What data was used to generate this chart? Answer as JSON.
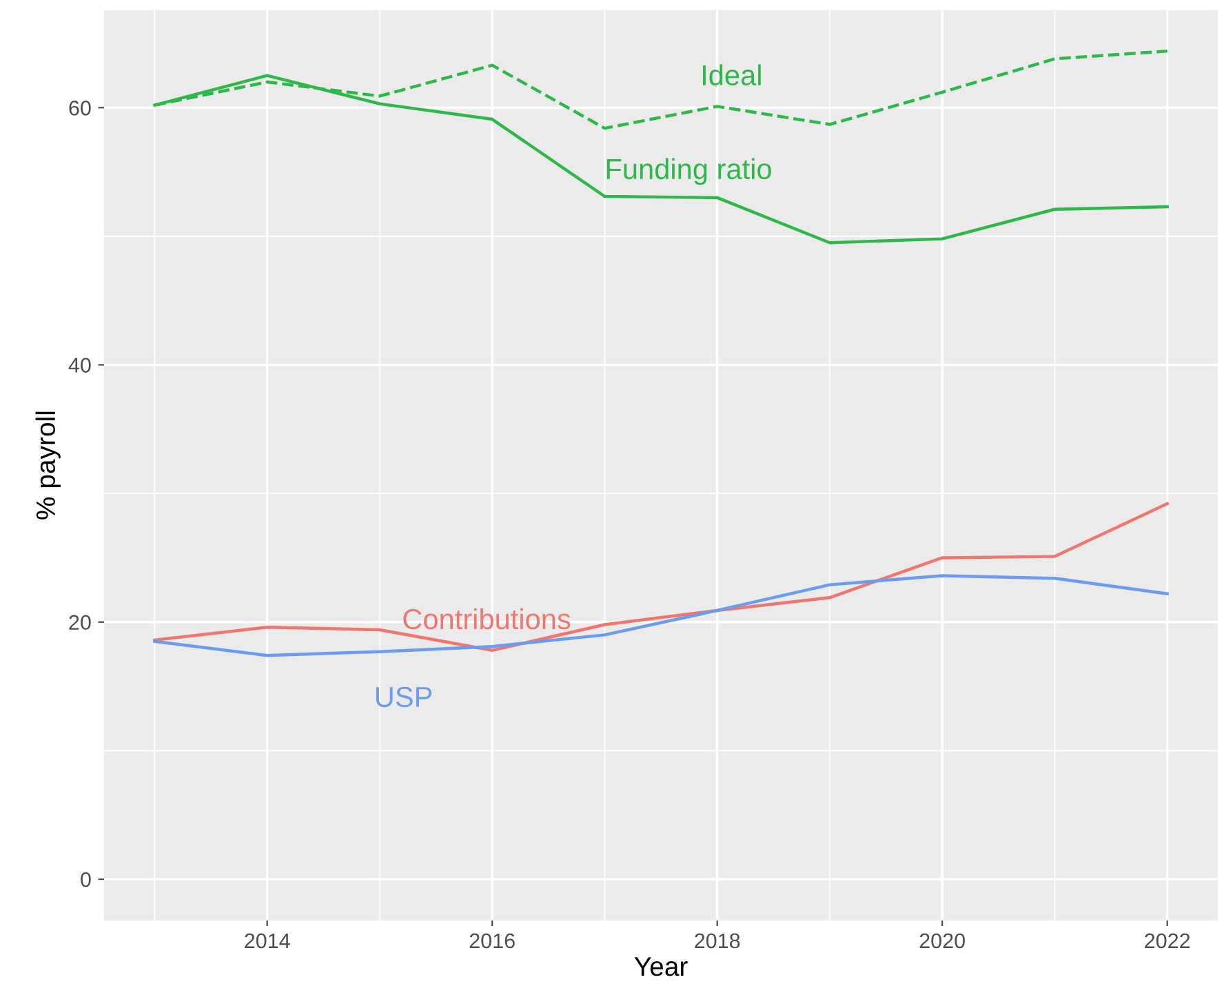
{
  "chart_data": {
    "type": "line",
    "xlabel": "Year",
    "ylabel": "% payroll",
    "x": [
      2013,
      2014,
      2015,
      2016,
      2017,
      2018,
      2019,
      2020,
      2021,
      2022
    ],
    "series": [
      {
        "name": "Ideal",
        "color": "#2eb84a",
        "line_style": "dashed",
        "values": [
          60.2,
          62.0,
          60.9,
          63.3,
          58.4,
          60.1,
          58.7,
          61.2,
          63.8,
          64.4
        ]
      },
      {
        "name": "Funding ratio",
        "color": "#2eb84a",
        "line_style": "solid",
        "values": [
          60.2,
          62.5,
          60.3,
          59.1,
          53.1,
          53.0,
          49.5,
          49.8,
          52.1,
          52.3
        ]
      },
      {
        "name": "Contributions",
        "color": "#f0776f",
        "line_style": "solid",
        "values": [
          18.6,
          19.6,
          19.4,
          17.8,
          19.8,
          20.9,
          21.9,
          25.0,
          25.1,
          29.2
        ]
      },
      {
        "name": "USP",
        "color": "#6b9cf0",
        "line_style": "solid",
        "values": [
          18.5,
          17.4,
          17.7,
          18.1,
          19.0,
          20.9,
          22.9,
          23.6,
          23.4,
          22.2
        ]
      }
    ],
    "xlim": [
      2012.55,
      2022.45
    ],
    "ylim": [
      -3.2,
      67.6
    ],
    "xticks": [
      2014,
      2016,
      2018,
      2020,
      2022
    ],
    "yticks": [
      0,
      20,
      40,
      60
    ],
    "grid": true,
    "legend": false,
    "marker": "none"
  }
}
